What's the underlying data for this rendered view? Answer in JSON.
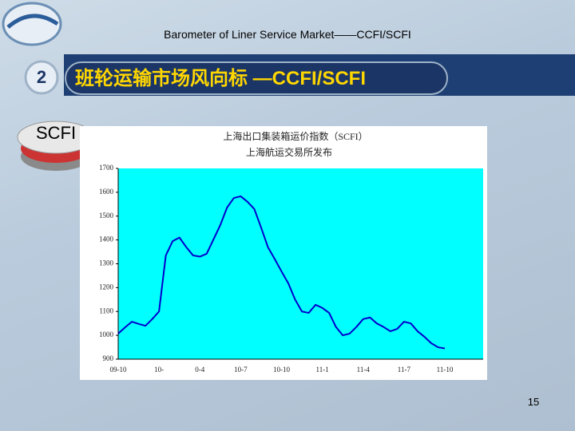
{
  "header": "Barometer of Liner Service Market——CCFI/SCFI",
  "section_number": "2",
  "section_title": "班轮运输市场风向标 —CCFI/SCFI",
  "icon_label": "SCFI",
  "page_number": "15",
  "chart_data": {
    "type": "line",
    "title": "上海出口集装箱运价指数（SCFI）",
    "subtitle": "上海航运交易所发布",
    "categories": [
      "09-10",
      null,
      null,
      null,
      null,
      null,
      "10-",
      null,
      null,
      null,
      null,
      null,
      "0-4",
      null,
      null,
      null,
      null,
      null,
      "10-7",
      null,
      null,
      null,
      null,
      null,
      "10-10",
      null,
      null,
      null,
      null,
      null,
      "11-1",
      null,
      null,
      null,
      null,
      null,
      "11-4",
      null,
      null,
      null,
      null,
      null,
      "11-7",
      null,
      null,
      null,
      null,
      null,
      "11-10"
    ],
    "series": [
      {
        "name": "SCFI",
        "color": "#0000cc",
        "values": [
          1007,
          1033,
          1057,
          1048,
          1040,
          1068,
          1100,
          1335,
          1395,
          1410,
          1370,
          1335,
          1330,
          1342,
          1402,
          1462,
          1536,
          1576,
          1583,
          1560,
          1530,
          1452,
          1370,
          1320,
          1268,
          1218,
          1150,
          1100,
          1094,
          1128,
          1115,
          1094,
          1035,
          1000,
          1007,
          1035,
          1068,
          1075,
          1050,
          1035,
          1017,
          1027,
          1057,
          1050,
          1017,
          994,
          967,
          950,
          945
        ]
      }
    ],
    "ylim": [
      900,
      1700
    ],
    "yticks": [
      900,
      1000,
      1100,
      1200,
      1300,
      1400,
      1500,
      1600,
      1700
    ],
    "grid": false,
    "plot_background": "#00ffff"
  }
}
